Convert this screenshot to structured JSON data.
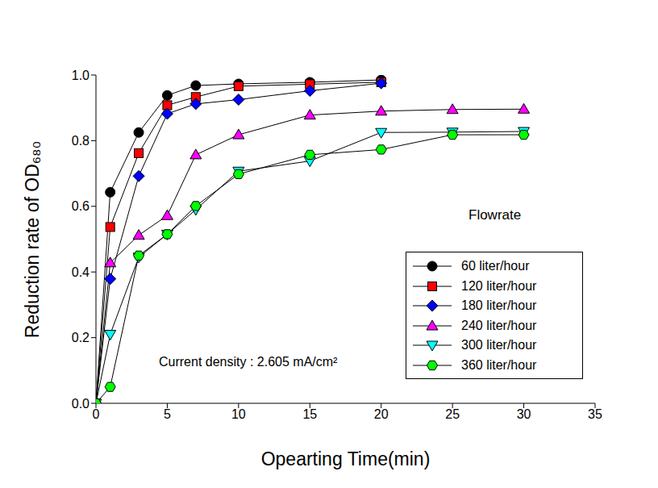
{
  "chart_data": {
    "type": "line",
    "xlabel": "Opearting Time(min)",
    "ylabel": "Reduction rate of OD₆₈₀",
    "annotations": [
      "Current density : 2.605 mA/cm²"
    ],
    "legend_title": "Flowrate",
    "legend": "lower right",
    "grid": false,
    "xlim": [
      0,
      35
    ],
    "xticks": [
      0,
      5,
      10,
      15,
      20,
      25,
      30,
      35
    ],
    "ylim": [
      0,
      1
    ],
    "yticks": [
      {
        "value": 0,
        "label": "0.0"
      },
      0.2,
      0.4,
      0.6,
      0.8,
      {
        "value": 1,
        "label": "1.0"
      }
    ],
    "series": [
      {
        "name": "60 liter/hour",
        "color": "#000000",
        "marker": "circle",
        "x": [
          0,
          1,
          3,
          5,
          7,
          10,
          15,
          20
        ],
        "values": [
          0,
          0.643,
          0.825,
          0.938,
          0.968,
          0.973,
          0.978,
          0.985
        ]
      },
      {
        "name": "120 liter/hour",
        "color": "#ff0000",
        "marker": "square",
        "x": [
          0,
          1,
          3,
          5,
          7,
          10,
          15,
          20
        ],
        "values": [
          0,
          0.537,
          0.762,
          0.908,
          0.933,
          0.966,
          0.972,
          0.978
        ]
      },
      {
        "name": "180 liter/hour",
        "color": "#0000ff",
        "marker": "diamond",
        "x": [
          0,
          1,
          3,
          5,
          7,
          10,
          15,
          20
        ],
        "values": [
          0,
          0.379,
          0.692,
          0.882,
          0.912,
          0.925,
          0.952,
          0.975
        ]
      },
      {
        "name": "240 liter/hour",
        "color": "#ff00ff",
        "marker": "triangle",
        "x": [
          0,
          1,
          3,
          5,
          7,
          10,
          15,
          20,
          25,
          30
        ],
        "values": [
          0,
          0.428,
          0.512,
          0.572,
          0.757,
          0.818,
          0.878,
          0.89,
          0.895,
          0.896
        ]
      },
      {
        "name": "300 liter/hour",
        "color": "#00ffff",
        "marker": "triangle-down",
        "x": [
          0,
          1,
          3,
          5,
          7,
          10,
          15,
          20,
          25,
          30
        ],
        "values": [
          0,
          0.21,
          0.445,
          0.515,
          0.59,
          0.707,
          0.738,
          0.825,
          0.826,
          0.828
        ]
      },
      {
        "name": "360 liter/hour",
        "color": "#00ff00",
        "marker": "hexagon",
        "x": [
          0,
          1,
          3,
          5,
          7,
          10,
          15,
          20,
          25,
          30
        ],
        "values": [
          0,
          0.05,
          0.45,
          0.515,
          0.601,
          0.698,
          0.757,
          0.773,
          0.818,
          0.818
        ]
      }
    ]
  }
}
